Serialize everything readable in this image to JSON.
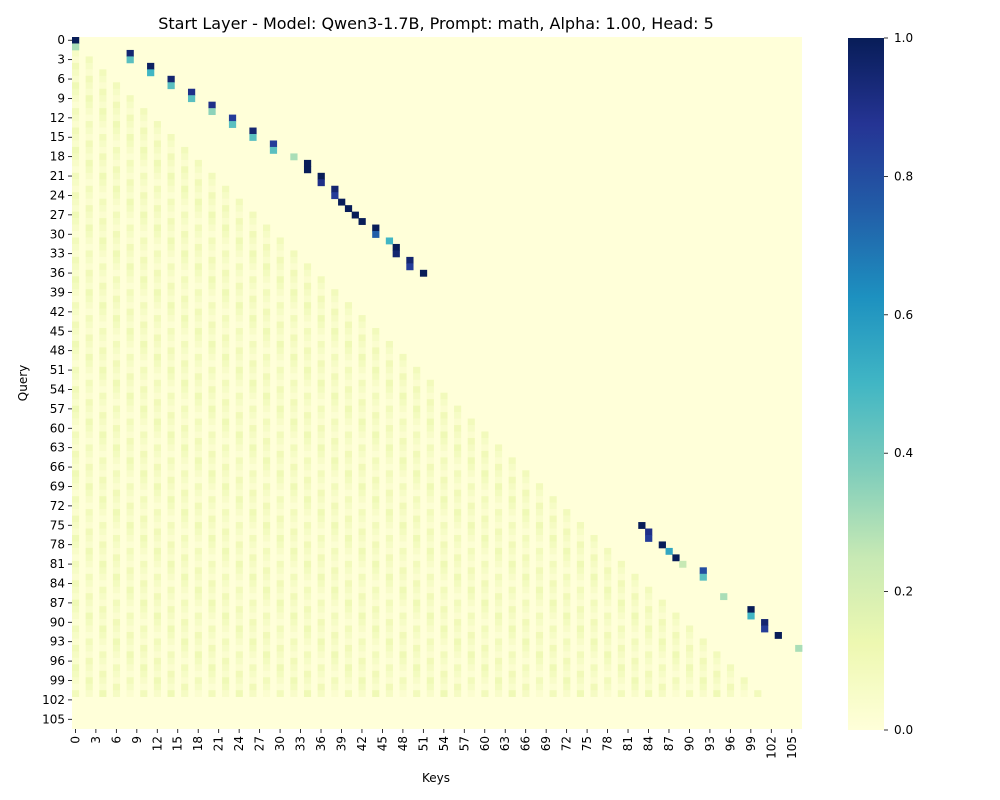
{
  "chart_data": {
    "type": "heatmap",
    "title": "Start Layer - Model: Qwen3-1.7B, Prompt: math, Alpha: 1.00, Head: 5",
    "xlabel": "Keys",
    "ylabel": "Query",
    "n_rows": 107,
    "n_cols": 107,
    "x_ticks": [
      "0",
      "3",
      "6",
      "9",
      "12",
      "15",
      "18",
      "21",
      "24",
      "27",
      "30",
      "33",
      "36",
      "39",
      "42",
      "45",
      "48",
      "51",
      "54",
      "57",
      "60",
      "63",
      "66",
      "69",
      "72",
      "75",
      "78",
      "81",
      "84",
      "87",
      "90",
      "93",
      "96",
      "99",
      "102",
      "105"
    ],
    "y_ticks": [
      "0",
      "3",
      "6",
      "9",
      "12",
      "15",
      "18",
      "21",
      "24",
      "27",
      "30",
      "33",
      "36",
      "39",
      "42",
      "45",
      "48",
      "51",
      "54",
      "57",
      "60",
      "63",
      "66",
      "69",
      "72",
      "75",
      "78",
      "81",
      "84",
      "87",
      "90",
      "93",
      "96",
      "99",
      "102",
      "105"
    ],
    "colorbar": {
      "colormap": "YlGnBu",
      "vmin": 0.0,
      "vmax": 1.0,
      "ticks": [
        "0.0",
        "0.2",
        "0.4",
        "0.6",
        "0.8",
        "1.0"
      ]
    },
    "mask": "upper triangle (keys > query) is 0.0",
    "strong_cells": [
      [
        0,
        0,
        1.0
      ],
      [
        1,
        0,
        0.3
      ],
      [
        2,
        8,
        0.95
      ],
      [
        3,
        8,
        0.45
      ],
      [
        4,
        11,
        0.98
      ],
      [
        5,
        11,
        0.5
      ],
      [
        6,
        14,
        0.95
      ],
      [
        7,
        14,
        0.45
      ],
      [
        8,
        17,
        0.9
      ],
      [
        9,
        17,
        0.45
      ],
      [
        10,
        20,
        0.9
      ],
      [
        11,
        20,
        0.35
      ],
      [
        12,
        23,
        0.85
      ],
      [
        13,
        23,
        0.45
      ],
      [
        14,
        26,
        0.95
      ],
      [
        15,
        26,
        0.45
      ],
      [
        16,
        29,
        0.85
      ],
      [
        17,
        29,
        0.45
      ],
      [
        18,
        32,
        0.3
      ],
      [
        19,
        34,
        1.0
      ],
      [
        20,
        34,
        1.0
      ],
      [
        21,
        36,
        1.0
      ],
      [
        22,
        36,
        0.9
      ],
      [
        23,
        38,
        0.95
      ],
      [
        24,
        38,
        0.85
      ],
      [
        25,
        39,
        1.0
      ],
      [
        26,
        40,
        1.0
      ],
      [
        27,
        41,
        1.0
      ],
      [
        28,
        42,
        1.0
      ],
      [
        29,
        44,
        1.0
      ],
      [
        30,
        44,
        0.75
      ],
      [
        31,
        46,
        0.5
      ],
      [
        32,
        47,
        1.0
      ],
      [
        33,
        47,
        0.95
      ],
      [
        34,
        49,
        0.95
      ],
      [
        35,
        49,
        0.85
      ],
      [
        36,
        51,
        1.0
      ],
      [
        75,
        83,
        1.0
      ],
      [
        76,
        84,
        0.9
      ],
      [
        77,
        84,
        0.85
      ],
      [
        78,
        86,
        1.0
      ],
      [
        79,
        87,
        0.55
      ],
      [
        80,
        88,
        1.0
      ],
      [
        81,
        89,
        0.25
      ],
      [
        82,
        92,
        0.8
      ],
      [
        83,
        92,
        0.45
      ],
      [
        86,
        95,
        0.3
      ],
      [
        88,
        99,
        1.0
      ],
      [
        89,
        99,
        0.5
      ],
      [
        90,
        101,
        0.95
      ],
      [
        91,
        101,
        0.85
      ],
      [
        92,
        103,
        1.0
      ],
      [
        94,
        106,
        0.3
      ]
    ]
  }
}
